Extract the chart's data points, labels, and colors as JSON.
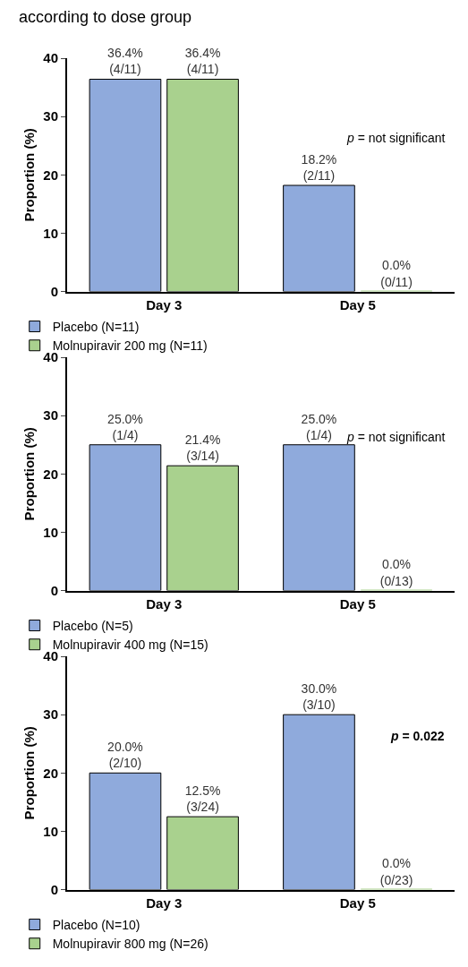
{
  "chart_data": [
    {
      "type": "bar",
      "title": "according to dose group",
      "ylabel": "Proportion (%)",
      "categories": [
        "Day 3",
        "Day 5"
      ],
      "ylim": [
        0,
        40
      ],
      "yticks": [
        0,
        10,
        20,
        30,
        40
      ],
      "legend": "bottom",
      "annotations": [
        "p = not significant"
      ],
      "series": [
        {
          "name": "Placebo (N=11)",
          "color": "#8faadc",
          "values": [
            36.4,
            18.2
          ],
          "value_labels": [
            "36.4%\n(4/11)",
            "18.2%\n(2/11)"
          ]
        },
        {
          "name": "Molnupiravir 200 mg (N=11)",
          "color": "#a9d18e",
          "values": [
            36.4,
            0.0
          ],
          "value_labels": [
            "36.4%\n(4/11)",
            "0.0%\n(0/11)"
          ]
        }
      ]
    },
    {
      "type": "bar",
      "ylabel": "Proportion (%)",
      "categories": [
        "Day 3",
        "Day 5"
      ],
      "ylim": [
        0,
        40
      ],
      "yticks": [
        0,
        10,
        20,
        30,
        40
      ],
      "legend": "bottom",
      "annotations": [
        "p = not significant"
      ],
      "series": [
        {
          "name": "Placebo (N=5)",
          "color": "#8faadc",
          "values": [
            25.0,
            25.0
          ],
          "value_labels": [
            "25.0%\n(1/4)",
            "25.0%\n(1/4)"
          ]
        },
        {
          "name": "Molnupiravir 400 mg (N=15)",
          "color": "#a9d18e",
          "values": [
            21.4,
            0.0
          ],
          "value_labels": [
            "21.4%\n(3/14)",
            "0.0%\n(0/13)"
          ]
        }
      ]
    },
    {
      "type": "bar",
      "ylabel": "Proportion (%)",
      "categories": [
        "Day 3",
        "Day 5"
      ],
      "ylim": [
        0,
        40
      ],
      "yticks": [
        0,
        10,
        20,
        30,
        40
      ],
      "legend": "bottom",
      "annotations": [
        "p = 0.022"
      ],
      "series": [
        {
          "name": "Placebo (N=10)",
          "color": "#8faadc",
          "values": [
            20.0,
            30.0
          ],
          "value_labels": [
            "20.0%\n(2/10)",
            "30.0%\n(3/10)"
          ]
        },
        {
          "name": "Molnupiravir 800 mg (N=26)",
          "color": "#a9d18e",
          "values": [
            12.5,
            0.0
          ],
          "value_labels": [
            "12.5%\n(3/24)",
            "0.0%\n(0/23)"
          ]
        }
      ]
    }
  ]
}
